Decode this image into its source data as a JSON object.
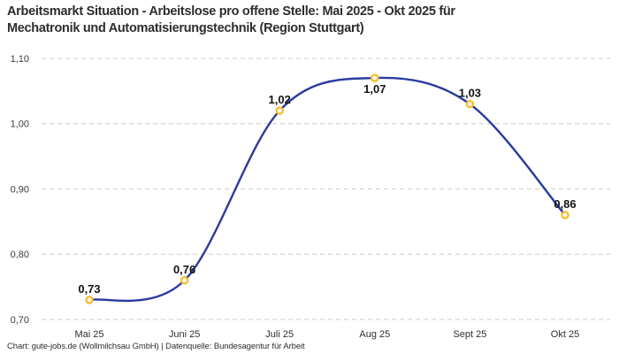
{
  "title_lines": {
    "line1": "Arbeitsmarkt Situation - Arbeitslose pro offene Stelle: Mai 2025 - Okt 2025 für",
    "line2": "Mechatronik und Automatisierungstechnik (Region Stuttgart)"
  },
  "footer": {
    "text": "Chart: gute-jobs.de (Wollmilchsau GmbH) | Datenquelle: Bundesagentur für Arbeit"
  },
  "colors": {
    "line": "#2a3b9f",
    "marker_ring": "#f9bb28",
    "marker_fill": "#ffffff",
    "grid": "#cccccc",
    "title": "#2d2d2d",
    "tick_label": "#3c3c3c",
    "point_label": "#131313"
  },
  "chart_data": {
    "type": "line",
    "title": "Arbeitsmarkt Situation - Arbeitslose pro offene Stelle: Mai 2025 - Okt 2025 für Mechatronik und Automatisierungstechnik (Region Stuttgart)",
    "categories": [
      "Mai 25",
      "Juni 25",
      "Juli 25",
      "Aug 25",
      "Sept 25",
      "Okt 25"
    ],
    "values": [
      0.73,
      0.76,
      1.02,
      1.07,
      1.03,
      0.86
    ],
    "point_labels": [
      "0,73",
      "0,76",
      "1,02",
      "1,07",
      "1,03",
      "0,86"
    ],
    "label_positions": [
      "above",
      "above",
      "above",
      "below",
      "above",
      "above"
    ],
    "y_ticks": [
      {
        "value": 0.7,
        "label": "0,70"
      },
      {
        "value": 0.8,
        "label": "0,80"
      },
      {
        "value": 0.9,
        "label": "0,90"
      },
      {
        "value": 1.0,
        "label": "1,00"
      },
      {
        "value": 1.1,
        "label": "1,10"
      }
    ],
    "ylim": [
      0.7,
      1.1
    ],
    "xlabel": "",
    "ylabel": "",
    "grid": "dashed-horizontal",
    "legend": "none",
    "smooth": true
  }
}
